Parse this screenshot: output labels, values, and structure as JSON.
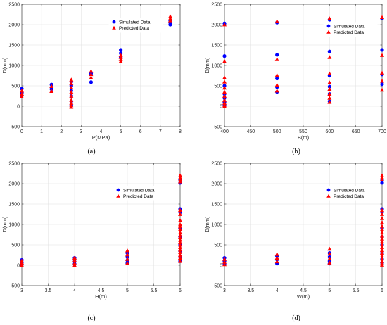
{
  "colors": {
    "simulated": "#0000ff",
    "predicted": "#ff0000"
  },
  "chart_data": [
    {
      "type": "scatter",
      "panel_label": "(a)",
      "xlabel": "P(MPa)",
      "ylabel": "D(mm)",
      "xlim": [
        0,
        8
      ],
      "ylim": [
        -500,
        2500
      ],
      "xticks": [
        0,
        1,
        2,
        3,
        4,
        5,
        6,
        7,
        8
      ],
      "yticks": [
        -500,
        0,
        500,
        1000,
        1500,
        2000,
        2500
      ],
      "grid": true,
      "legend_position": "upper-middle",
      "series": [
        {
          "name": "Simulated Data",
          "marker": "circle",
          "x": [
            0,
            0,
            0,
            1.5,
            1.5,
            2.5,
            2.5,
            2.5,
            2.5,
            2.5,
            2.5,
            3.5,
            3.5,
            5,
            5,
            5,
            7.5,
            7.5,
            7.5
          ],
          "y": [
            430,
            330,
            260,
            530,
            420,
            600,
            500,
            380,
            250,
            120,
            20,
            800,
            590,
            1380,
            1300,
            1200,
            2100,
            2050,
            2000
          ]
        },
        {
          "name": "Predicted Data",
          "marker": "triangle",
          "x": [
            0,
            0,
            0,
            1.5,
            1.5,
            2.5,
            2.5,
            2.5,
            2.5,
            2.5,
            2.5,
            2.5,
            2.5,
            2.5,
            3.5,
            3.5,
            3.5,
            5,
            5,
            5,
            5,
            7.5,
            7.5,
            7.5
          ],
          "y": [
            380,
            300,
            230,
            490,
            370,
            650,
            560,
            460,
            350,
            250,
            150,
            80,
            20,
            -20,
            860,
            780,
            700,
            1250,
            1200,
            1150,
            1100,
            2200,
            2150,
            2100
          ]
        }
      ]
    },
    {
      "type": "scatter",
      "panel_label": "(b)",
      "xlabel": "B(m)",
      "ylabel": "D(mm)",
      "xlim": [
        400,
        700
      ],
      "ylim": [
        -500,
        2500
      ],
      "xticks": [
        400,
        450,
        500,
        550,
        600,
        650,
        700
      ],
      "yticks": [
        -500,
        0,
        500,
        1000,
        1500,
        2000,
        2500
      ],
      "grid": true,
      "legend_position": "top-right",
      "series": [
        {
          "name": "Simulated Data",
          "marker": "circle",
          "x": [
            400,
            400,
            400,
            400,
            400,
            400,
            400,
            500,
            500,
            500,
            500,
            500,
            600,
            600,
            600,
            600,
            600,
            600,
            700,
            700,
            700,
            700
          ],
          "y": [
            2030,
            1230,
            500,
            300,
            200,
            100,
            30,
            2050,
            1260,
            680,
            470,
            350,
            2120,
            1340,
            750,
            480,
            300,
            120,
            2150,
            1380,
            780,
            540
          ]
        },
        {
          "name": "Predicted Data",
          "marker": "triangle",
          "x": [
            400,
            400,
            400,
            400,
            400,
            400,
            400,
            400,
            400,
            400,
            400,
            500,
            500,
            500,
            500,
            500,
            600,
            600,
            600,
            600,
            600,
            600,
            600,
            600,
            700,
            700,
            700,
            700,
            700
          ],
          "y": [
            2000,
            1100,
            700,
            600,
            450,
            350,
            250,
            150,
            80,
            30,
            0,
            2080,
            1150,
            760,
            520,
            380,
            2150,
            1200,
            800,
            580,
            420,
            300,
            200,
            100,
            2180,
            1250,
            820,
            620,
            400
          ]
        }
      ]
    },
    {
      "type": "scatter",
      "panel_label": "(c)",
      "xlabel": "H(m)",
      "ylabel": "D(mm)",
      "xlim": [
        3,
        6
      ],
      "ylim": [
        -500,
        2500
      ],
      "xticks": [
        3,
        3.5,
        4,
        4.5,
        5,
        5.5,
        6
      ],
      "yticks": [
        -500,
        0,
        500,
        1000,
        1500,
        2000,
        2500
      ],
      "grid": true,
      "legend_position": "right-middle",
      "series": [
        {
          "name": "Simulated Data",
          "marker": "circle",
          "x": [
            3,
            3,
            3,
            4,
            4,
            4,
            5,
            5,
            5,
            5,
            6,
            6,
            6,
            6,
            6,
            6,
            6,
            6,
            6,
            6
          ],
          "y": [
            130,
            70,
            20,
            180,
            90,
            30,
            300,
            200,
            120,
            50,
            2100,
            2020,
            1380,
            1300,
            900,
            700,
            500,
            350,
            200,
            100
          ]
        },
        {
          "name": "Predicted Data",
          "marker": "triangle",
          "x": [
            3,
            3,
            3,
            4,
            4,
            4,
            4,
            5,
            5,
            5,
            5,
            6,
            6,
            6,
            6,
            6,
            6,
            6,
            6,
            6,
            6,
            6,
            6,
            6,
            6,
            6,
            6,
            6,
            6,
            6,
            6,
            6,
            6
          ],
          "y": [
            110,
            60,
            0,
            180,
            120,
            50,
            0,
            360,
            260,
            150,
            50,
            2200,
            2150,
            2100,
            2050,
            1350,
            1250,
            1100,
            1000,
            950,
            880,
            800,
            740,
            680,
            620,
            560,
            500,
            440,
            380,
            320,
            250,
            180,
            100
          ]
        }
      ]
    },
    {
      "type": "scatter",
      "panel_label": "(d)",
      "xlabel": "W(m)",
      "ylabel": "D(mm)",
      "xlim": [
        3,
        6
      ],
      "ylim": [
        -500,
        2500
      ],
      "xticks": [
        3,
        3.5,
        4,
        4.5,
        5,
        5.5,
        6
      ],
      "yticks": [
        -500,
        0,
        500,
        1000,
        1500,
        2000,
        2500
      ],
      "grid": true,
      "legend_position": "right-middle",
      "series": [
        {
          "name": "Simulated Data",
          "marker": "circle",
          "x": [
            3,
            3,
            3,
            4,
            4,
            4,
            5,
            5,
            5,
            5,
            6,
            6,
            6,
            6,
            6,
            6,
            6,
            6,
            6,
            6
          ],
          "y": [
            180,
            100,
            30,
            220,
            140,
            40,
            300,
            200,
            100,
            40,
            2080,
            2020,
            1380,
            1300,
            900,
            700,
            500,
            300,
            150,
            60
          ]
        },
        {
          "name": "Predicted Data",
          "marker": "triangle",
          "x": [
            3,
            3,
            3,
            4,
            4,
            4,
            5,
            5,
            5,
            5,
            6,
            6,
            6,
            6,
            6,
            6,
            6,
            6,
            6,
            6,
            6,
            6,
            6,
            6,
            6,
            6,
            6,
            6,
            6,
            6,
            6,
            6
          ],
          "y": [
            150,
            80,
            20,
            270,
            180,
            90,
            400,
            280,
            160,
            60,
            2200,
            2150,
            2100,
            1350,
            1250,
            1150,
            1050,
            960,
            880,
            800,
            720,
            650,
            580,
            510,
            440,
            370,
            300,
            230,
            160,
            100,
            50,
            10
          ]
        }
      ]
    }
  ]
}
